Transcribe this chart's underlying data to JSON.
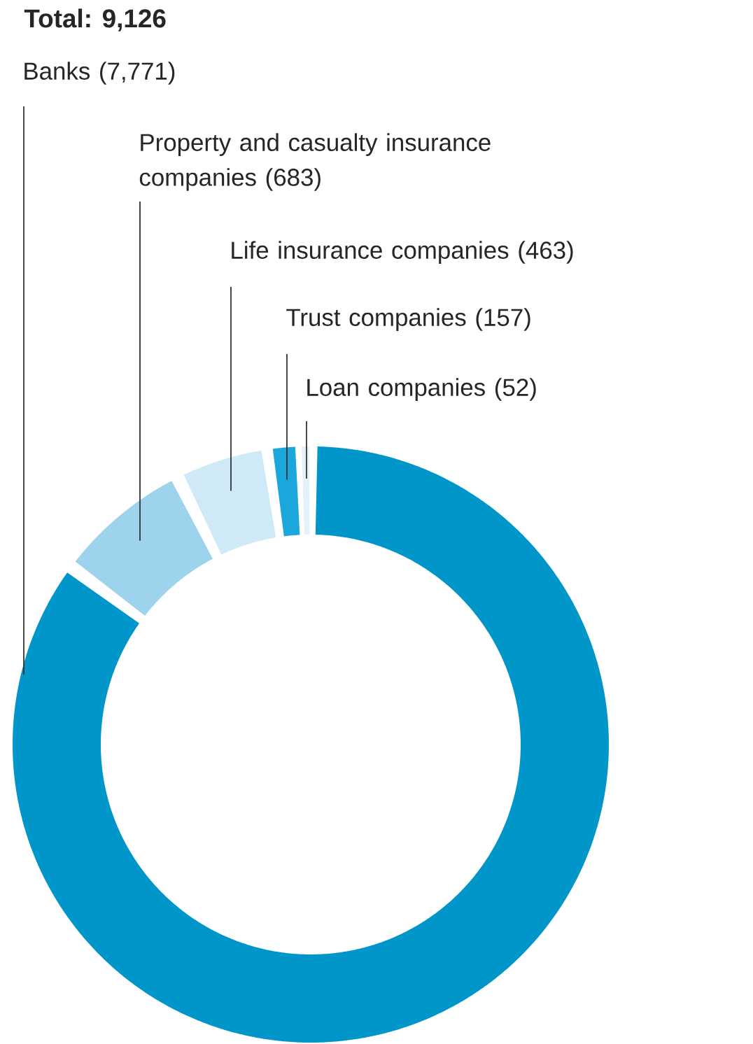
{
  "chart_data": {
    "type": "donut",
    "title": "Total: 9,126",
    "categories": [
      "Banks",
      "Property and casualty insurance companies",
      "Life insurance companies",
      "Trust companies",
      "Loan companies"
    ],
    "values": [
      7771,
      683,
      463,
      157,
      52
    ],
    "value_labels": [
      "(7,771)",
      "(683)",
      "(463)",
      "(157)",
      "(52)"
    ],
    "colors": [
      "#0096c9",
      "#9dd3ec",
      "#d0e9f6",
      "#1ba7dc",
      "#e3f2f9"
    ]
  }
}
